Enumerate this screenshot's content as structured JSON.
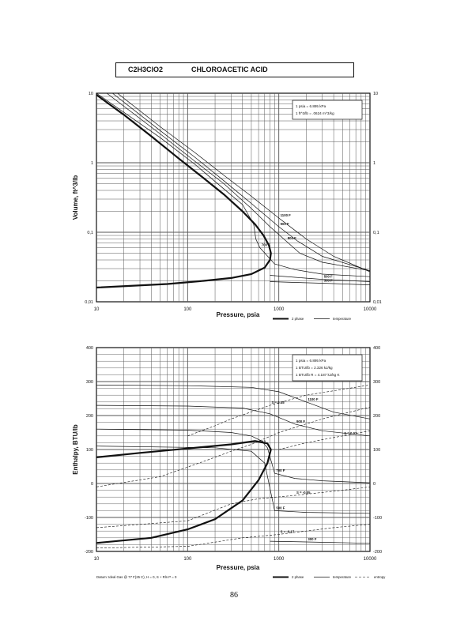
{
  "header": {
    "formula": "C2H3ClO2",
    "compound": "CHLOROACETIC ACID"
  },
  "page_number": "86",
  "colors": {
    "ink": "#111111",
    "grid": "#555555"
  },
  "chart_data": [
    {
      "type": "line",
      "xlabel": "Pressure,  psia",
      "ylabel": "Volume, ft^3/lb",
      "xscale": "log",
      "yscale": "log",
      "xlim": [
        10,
        10000
      ],
      "ylim": [
        0.01,
        10
      ],
      "grid": true,
      "x_ticks": [
        "10",
        "100",
        "1000",
        "10000"
      ],
      "y_ticks": [
        "0,01",
        "0,1",
        "1",
        "10"
      ],
      "y_ticks_right": [
        "0,01",
        "0,1",
        "1",
        "10"
      ],
      "conversion_box": [
        "1 psia  =  6.895 kPa",
        "1 ft^3/lb  =  .0624 m^3/kg"
      ],
      "legend": [
        {
          "label": "2 phase",
          "style": "thick"
        },
        {
          "label": "temperature",
          "style": "thin"
        }
      ],
      "series": [
        {
          "name": "2 phase",
          "style": "thick",
          "points": [
            [
              10,
              9.5
            ],
            [
              20,
              4.9
            ],
            [
              40,
              2.4
            ],
            [
              80,
              1.15
            ],
            [
              150,
              0.6
            ],
            [
              250,
              0.35
            ],
            [
              400,
              0.2
            ],
            [
              550,
              0.13
            ],
            [
              680,
              0.09
            ],
            [
              780,
              0.065
            ],
            [
              820,
              0.05
            ],
            [
              800,
              0.04
            ],
            [
              700,
              0.031
            ],
            [
              500,
              0.025
            ],
            [
              300,
              0.022
            ],
            [
              150,
              0.02
            ],
            [
              60,
              0.018
            ],
            [
              10,
              0.016
            ]
          ]
        },
        {
          "name": "700 F",
          "label": "700 F",
          "style": "thin",
          "points": [
            [
              10,
              10
            ],
            [
              50,
              2.3
            ],
            [
              120,
              0.95
            ],
            [
              250,
              0.42
            ],
            [
              400,
              0.25
            ],
            [
              530,
              0.13
            ],
            [
              560,
              0.08
            ],
            [
              620,
              0.06
            ],
            [
              900,
              0.035
            ],
            [
              1500,
              0.029
            ],
            [
              3000,
              0.025
            ],
            [
              10000,
              0.023
            ]
          ]
        },
        {
          "name": "800 F",
          "label": "800 F",
          "style": "thin",
          "points": [
            [
              13,
              10
            ],
            [
              50,
              2.6
            ],
            [
              120,
              1.05
            ],
            [
              250,
              0.5
            ],
            [
              500,
              0.22
            ],
            [
              800,
              0.12
            ],
            [
              1200,
              0.075
            ],
            [
              1700,
              0.05
            ],
            [
              3000,
              0.037
            ],
            [
              10000,
              0.028
            ]
          ]
        },
        {
          "name": "900 F",
          "label": "900 F",
          "style": "thin",
          "points": [
            [
              15,
              10
            ],
            [
              50,
              2.9
            ],
            [
              120,
              1.2
            ],
            [
              250,
              0.55
            ],
            [
              500,
              0.26
            ],
            [
              1000,
              0.12
            ],
            [
              1600,
              0.075
            ],
            [
              3000,
              0.045
            ],
            [
              10000,
              0.028
            ]
          ]
        },
        {
          "name": "1100 F",
          "label": "1100 F",
          "style": "thin",
          "points": [
            [
              17,
              10
            ],
            [
              50,
              3.3
            ],
            [
              120,
              1.4
            ],
            [
              250,
              0.66
            ],
            [
              500,
              0.33
            ],
            [
              1000,
              0.16
            ],
            [
              2000,
              0.08
            ],
            [
              4000,
              0.045
            ],
            [
              10000,
              0.027
            ]
          ]
        },
        {
          "name": "500 F",
          "label": "500 F",
          "style": "thin",
          "points": [
            [
              800,
              0.024
            ],
            [
              1500,
              0.0225
            ],
            [
              3000,
              0.021
            ],
            [
              10000,
              0.0195
            ]
          ]
        },
        {
          "name": "300 F",
          "label": "300 F",
          "style": "thin",
          "points": [
            [
              800,
              0.0195
            ],
            [
              1500,
              0.019
            ],
            [
              3000,
              0.0185
            ],
            [
              10000,
              0.0175
            ]
          ]
        }
      ]
    },
    {
      "type": "line",
      "xlabel": "Pressure,  psia",
      "ylabel": "Enthalpy, BTU/lb",
      "xscale": "log",
      "yscale": "linear",
      "xlim": [
        10,
        10000
      ],
      "ylim": [
        -200,
        400
      ],
      "grid": true,
      "x_ticks": [
        "10",
        "100",
        "1000",
        "10000"
      ],
      "y_ticks": [
        "-200",
        "-100",
        "0",
        "100",
        "200",
        "300",
        "400"
      ],
      "y_ticks_right": [
        "-200",
        "-100",
        "0",
        "100",
        "200",
        "300",
        "400"
      ],
      "conversion_box": [
        "1 psia  =  6.895 kPa",
        "1 BTU/lb  =  2.326 kJ/kg",
        "1 BTU/lb R  =  4.187 kJ/kg K"
      ],
      "footnote": "Datum: Ideal Gas @ 77 F(25 C),  H = 0,  S + Rln P = 0",
      "legend": [
        {
          "label": "2 phase",
          "style": "thick"
        },
        {
          "label": "temperature",
          "style": "thin"
        },
        {
          "label": "entropy",
          "style": "dashed"
        }
      ],
      "series": [
        {
          "name": "2 phase (vapor)",
          "style": "thick",
          "points": [
            [
              10,
              77
            ],
            [
              30,
              90
            ],
            [
              100,
              103
            ],
            [
              300,
              115
            ],
            [
              550,
              125
            ],
            [
              750,
              118
            ],
            [
              820,
              100
            ]
          ]
        },
        {
          "name": "2 phase (liquid)",
          "style": "thick",
          "points": [
            [
              820,
              100
            ],
            [
              750,
              60
            ],
            [
              600,
              10
            ],
            [
              400,
              -50
            ],
            [
              200,
              -105
            ],
            [
              100,
              -135
            ],
            [
              40,
              -160
            ],
            [
              10,
              -175
            ]
          ]
        },
        {
          "name": "1100 F",
          "label": "1100 F",
          "style": "thin",
          "points": [
            [
              10,
              290
            ],
            [
              100,
              288
            ],
            [
              500,
              283
            ],
            [
              1000,
              270
            ],
            [
              2000,
              240
            ],
            [
              4000,
              210
            ],
            [
              10000,
              190
            ]
          ]
        },
        {
          "name": "900 F",
          "label": "900 F",
          "style": "thin",
          "points": [
            [
              10,
              230
            ],
            [
              100,
              228
            ],
            [
              400,
              222
            ],
            [
              800,
              205
            ],
            [
              1500,
              175
            ],
            [
              3000,
              155
            ],
            [
              10000,
              140
            ]
          ]
        },
        {
          "name": "700 F",
          "label": "700 F",
          "style": "thin",
          "points": [
            [
              10,
              160
            ],
            [
              100,
              157
            ],
            [
              300,
              150
            ],
            [
              500,
              140
            ],
            [
              650,
              125
            ],
            [
              750,
              105
            ],
            [
              900,
              30
            ],
            [
              1500,
              15
            ],
            [
              3000,
              8
            ],
            [
              10000,
              2
            ]
          ]
        },
        {
          "name": "500 F",
          "label": "500 F",
          "style": "thin",
          "points": [
            [
              10,
              110
            ],
            [
              200,
              105
            ],
            [
              500,
              95
            ],
            [
              700,
              60
            ],
            [
              900,
              -80
            ],
            [
              2000,
              -85
            ],
            [
              10000,
              -88
            ]
          ]
        },
        {
          "name": "300 F",
          "label": "300 F",
          "style": "thin",
          "points": [
            [
              800,
              -170
            ],
            [
              2000,
              -172
            ],
            [
              10000,
              -176
            ]
          ]
        },
        {
          "name": "S = 0.15",
          "label": "S = 0.15",
          "style": "dashed",
          "points": [
            [
              100,
              140
            ],
            [
              200,
              170
            ],
            [
              300,
              190
            ],
            [
              800,
              230
            ],
            [
              2000,
              260
            ],
            [
              10000,
              290
            ]
          ]
        },
        {
          "name": "S = 0.12",
          "label": "S = 0.12",
          "style": "dashed",
          "points": [
            [
              10,
              -10
            ],
            [
              50,
              20
            ],
            [
              150,
              65
            ],
            [
              300,
              95
            ],
            [
              500,
              115
            ],
            [
              1000,
              150
            ],
            [
              3000,
              190
            ],
            [
              10000,
              225
            ]
          ]
        },
        {
          "name": "S = 0.07",
          "label": "S = 0.07",
          "style": "dashed",
          "points": [
            [
              1000,
              100
            ],
            [
              2000,
              120
            ],
            [
              5000,
              140
            ],
            [
              10000,
              155
            ]
          ]
        },
        {
          "name": "S = -0.05",
          "label": "S = -0.05",
          "style": "dashed",
          "points": [
            [
              10,
              -130
            ],
            [
              100,
              -110
            ],
            [
              300,
              -60
            ],
            [
              600,
              -45
            ],
            [
              1500,
              -35
            ],
            [
              5000,
              -20
            ],
            [
              10000,
              -10
            ]
          ]
        },
        {
          "name": "S = -0.17",
          "label": "S = -0.17",
          "style": "dashed",
          "points": [
            [
              10,
              -190
            ],
            [
              100,
              -185
            ],
            [
              400,
              -160
            ],
            [
              1000,
              -150
            ],
            [
              4000,
              -130
            ],
            [
              10000,
              -120
            ]
          ]
        }
      ]
    }
  ]
}
